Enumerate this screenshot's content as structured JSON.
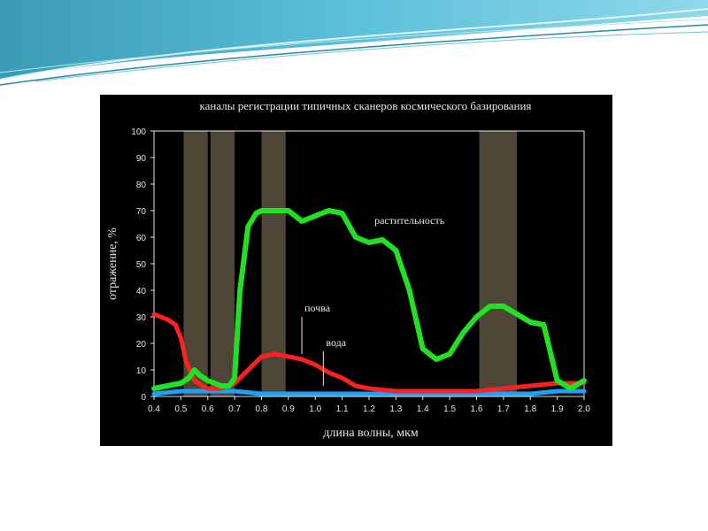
{
  "chart_data": {
    "type": "line",
    "title": "каналы регистрации типичных сканеров космического базирования",
    "xlabel": "длина волны, мкм",
    "ylabel": "отражение, %",
    "xlim": [
      0.4,
      2.0
    ],
    "ylim": [
      0,
      100
    ],
    "x_ticks": [
      "0.4",
      "0.5",
      "0.6",
      "0.7",
      "0.8",
      "0.9",
      "1.0",
      "1.1",
      "1.2",
      "1.3",
      "1.4",
      "1.5",
      "1.6",
      "1.7",
      "1.8",
      "1.9",
      "2.0"
    ],
    "y_ticks": [
      "0",
      "10",
      "20",
      "30",
      "40",
      "50",
      "60",
      "70",
      "80",
      "90",
      "100"
    ],
    "grid": false,
    "bands": [
      [
        0.51,
        0.6
      ],
      [
        0.61,
        0.7
      ],
      [
        0.8,
        0.89
      ],
      [
        1.61,
        1.75
      ]
    ],
    "series": [
      {
        "name": "растительность",
        "color": "#22e022",
        "x": [
          0.4,
          0.45,
          0.5,
          0.53,
          0.55,
          0.57,
          0.6,
          0.65,
          0.68,
          0.7,
          0.72,
          0.75,
          0.78,
          0.8,
          0.85,
          0.9,
          0.95,
          1.0,
          1.05,
          1.1,
          1.15,
          1.2,
          1.25,
          1.3,
          1.35,
          1.4,
          1.45,
          1.5,
          1.55,
          1.6,
          1.65,
          1.7,
          1.75,
          1.8,
          1.85,
          1.9,
          1.95,
          2.0
        ],
        "y": [
          3,
          4,
          5,
          7,
          10,
          8,
          6,
          4,
          4,
          7,
          40,
          64,
          69,
          70,
          70,
          70,
          66,
          68,
          70,
          69,
          60,
          58,
          59,
          55,
          40,
          18,
          14,
          16,
          24,
          30,
          34,
          34,
          31,
          28,
          27,
          6,
          3,
          6
        ]
      },
      {
        "name": "почва",
        "color": "#ff2020",
        "x": [
          0.4,
          0.45,
          0.48,
          0.5,
          0.52,
          0.55,
          0.58,
          0.6,
          0.65,
          0.7,
          0.75,
          0.8,
          0.85,
          0.9,
          0.95,
          1.0,
          1.05,
          1.1,
          1.15,
          1.2,
          1.3,
          1.4,
          1.5,
          1.6,
          1.7,
          1.8,
          1.9,
          2.0
        ],
        "y": [
          31,
          29,
          27,
          22,
          13,
          6,
          4,
          3,
          3,
          5,
          10,
          15,
          16,
          15,
          14,
          12,
          9,
          7,
          4,
          3,
          2,
          2,
          2,
          2,
          3,
          4,
          5,
          5
        ]
      },
      {
        "name": "вода",
        "color": "#1ea0ff",
        "x": [
          0.4,
          0.5,
          0.6,
          0.7,
          0.8,
          0.9,
          1.0,
          1.1,
          1.2,
          1.3,
          1.4,
          1.5,
          1.6,
          1.7,
          1.8,
          1.9,
          2.0
        ],
        "y": [
          1,
          2,
          2,
          2,
          1,
          1,
          1,
          1,
          1,
          1,
          1,
          1,
          1,
          1,
          1,
          2,
          2
        ]
      }
    ],
    "annotations": [
      {
        "text": "растительность",
        "x": 1.22,
        "y": 65
      },
      {
        "text": "почва",
        "x": 0.96,
        "y": 32
      },
      {
        "text": "вода",
        "x": 1.04,
        "y": 19
      }
    ]
  }
}
